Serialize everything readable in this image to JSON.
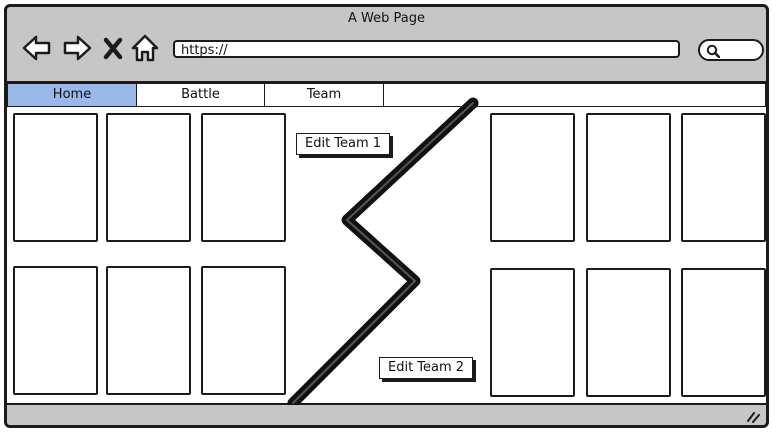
{
  "window": {
    "title": "A Web Page"
  },
  "toolbar": {
    "back_icon": "back-arrow-icon",
    "forward_icon": "forward-arrow-icon",
    "stop_icon": "close-icon",
    "home_icon": "home-icon"
  },
  "address_bar": {
    "value": "https://"
  },
  "search": {
    "icon": "search-icon"
  },
  "tabs": [
    {
      "label": "Home",
      "active": true
    },
    {
      "label": "Battle",
      "active": false
    },
    {
      "label": "Team",
      "active": false
    }
  ],
  "team1": {
    "edit_label": "Edit Team 1",
    "card_count": 6
  },
  "team2": {
    "edit_label": "Edit Team 2",
    "card_count": 6
  },
  "colors": {
    "active_tab": "#9ab8ec",
    "frame": "#c6c6c6",
    "stroke": "#1b1b1b"
  }
}
